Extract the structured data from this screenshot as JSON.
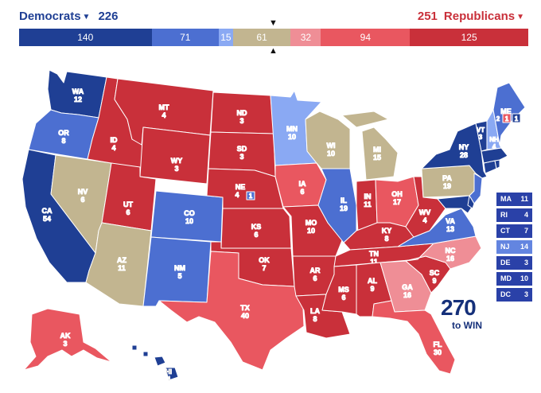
{
  "header": {
    "dem_label": "Democrats",
    "dem_total": "226",
    "rep_total": "251",
    "rep_label": "Republicans"
  },
  "colors": {
    "solid_d": "#1f3f94",
    "likely_d": "#4c6fd1",
    "leans_d": "#8aa9f3",
    "tossup": "#c2b590",
    "leans_r": "#ef8e96",
    "likely_r": "#e95760",
    "solid_r": "#c9303a"
  },
  "bar_segments": [
    {
      "value": 140,
      "label": "140",
      "color": "#1f3f94"
    },
    {
      "value": 71,
      "label": "71",
      "color": "#4c6fd1"
    },
    {
      "value": 15,
      "label": "15",
      "color": "#8aa9f3"
    },
    {
      "value": 61,
      "label": "61",
      "color": "#c2b590"
    },
    {
      "value": 32,
      "label": "32",
      "color": "#ef8e96"
    },
    {
      "value": 94,
      "label": "94",
      "color": "#e95760"
    },
    {
      "value": 125,
      "label": "125",
      "color": "#c9303a"
    }
  ],
  "states": [
    {
      "abbr": "WA",
      "ev": "12",
      "rating": "solid_d"
    },
    {
      "abbr": "OR",
      "ev": "8",
      "rating": "likely_d"
    },
    {
      "abbr": "CA",
      "ev": "54",
      "rating": "solid_d"
    },
    {
      "abbr": "NV",
      "ev": "6",
      "rating": "tossup"
    },
    {
      "abbr": "ID",
      "ev": "4",
      "rating": "solid_r"
    },
    {
      "abbr": "MT",
      "ev": "4",
      "rating": "solid_r"
    },
    {
      "abbr": "WY",
      "ev": "3",
      "rating": "solid_r"
    },
    {
      "abbr": "UT",
      "ev": "6",
      "rating": "solid_r"
    },
    {
      "abbr": "AZ",
      "ev": "11",
      "rating": "tossup"
    },
    {
      "abbr": "CO",
      "ev": "10",
      "rating": "likely_d"
    },
    {
      "abbr": "NM",
      "ev": "5",
      "rating": "likely_d"
    },
    {
      "abbr": "ND",
      "ev": "3",
      "rating": "solid_r"
    },
    {
      "abbr": "SD",
      "ev": "3",
      "rating": "solid_r"
    },
    {
      "abbr": "NE",
      "ev": "4",
      "rating": "solid_r"
    },
    {
      "abbr": "KS",
      "ev": "6",
      "rating": "solid_r"
    },
    {
      "abbr": "OK",
      "ev": "7",
      "rating": "solid_r"
    },
    {
      "abbr": "TX",
      "ev": "40",
      "rating": "likely_r"
    },
    {
      "abbr": "MN",
      "ev": "10",
      "rating": "leans_d"
    },
    {
      "abbr": "IA",
      "ev": "6",
      "rating": "likely_r"
    },
    {
      "abbr": "MO",
      "ev": "10",
      "rating": "solid_r"
    },
    {
      "abbr": "AR",
      "ev": "6",
      "rating": "solid_r"
    },
    {
      "abbr": "LA",
      "ev": "8",
      "rating": "solid_r"
    },
    {
      "abbr": "WI",
      "ev": "10",
      "rating": "tossup"
    },
    {
      "abbr": "IL",
      "ev": "19",
      "rating": "likely_d"
    },
    {
      "abbr": "MI",
      "ev": "15",
      "rating": "tossup"
    },
    {
      "abbr": "IN",
      "ev": "11",
      "rating": "solid_r"
    },
    {
      "abbr": "OH",
      "ev": "17",
      "rating": "likely_r"
    },
    {
      "abbr": "KY",
      "ev": "8",
      "rating": "solid_r"
    },
    {
      "abbr": "TN",
      "ev": "11",
      "rating": "solid_r"
    },
    {
      "abbr": "MS",
      "ev": "6",
      "rating": "solid_r"
    },
    {
      "abbr": "AL",
      "ev": "9",
      "rating": "solid_r"
    },
    {
      "abbr": "GA",
      "ev": "16",
      "rating": "leans_r"
    },
    {
      "abbr": "FL",
      "ev": "30",
      "rating": "likely_r"
    },
    {
      "abbr": "SC",
      "ev": "9",
      "rating": "solid_r"
    },
    {
      "abbr": "NC",
      "ev": "16",
      "rating": "leans_r"
    },
    {
      "abbr": "VA",
      "ev": "13",
      "rating": "likely_d"
    },
    {
      "abbr": "WV",
      "ev": "4",
      "rating": "solid_r"
    },
    {
      "abbr": "PA",
      "ev": "19",
      "rating": "tossup"
    },
    {
      "abbr": "NY",
      "ev": "28",
      "rating": "solid_d"
    },
    {
      "abbr": "VT",
      "ev": "3",
      "rating": "solid_d"
    },
    {
      "abbr": "NH",
      "ev": "4",
      "rating": "leans_d"
    },
    {
      "abbr": "ME",
      "ev": "",
      "rating": "likely_d"
    },
    {
      "abbr": "AK",
      "ev": "3",
      "rating": "likely_r"
    },
    {
      "abbr": "HI",
      "ev": "4",
      "rating": "solid_d"
    }
  ],
  "districts": {
    "ne_2": "1",
    "me_1": "2",
    "me_2": "1",
    "me_split": "1"
  },
  "small_states": [
    {
      "abbr": "MA",
      "ev": "11",
      "rating": "solid_d"
    },
    {
      "abbr": "RI",
      "ev": "4",
      "rating": "solid_d"
    },
    {
      "abbr": "CT",
      "ev": "7",
      "rating": "solid_d"
    },
    {
      "abbr": "NJ",
      "ev": "14",
      "rating": "likely_d"
    },
    {
      "abbr": "DE",
      "ev": "3",
      "rating": "solid_d"
    },
    {
      "abbr": "MD",
      "ev": "10",
      "rating": "solid_d"
    },
    {
      "abbr": "DC",
      "ev": "3",
      "rating": "solid_d"
    }
  ],
  "logo": {
    "number": "270",
    "text": "to WIN"
  }
}
